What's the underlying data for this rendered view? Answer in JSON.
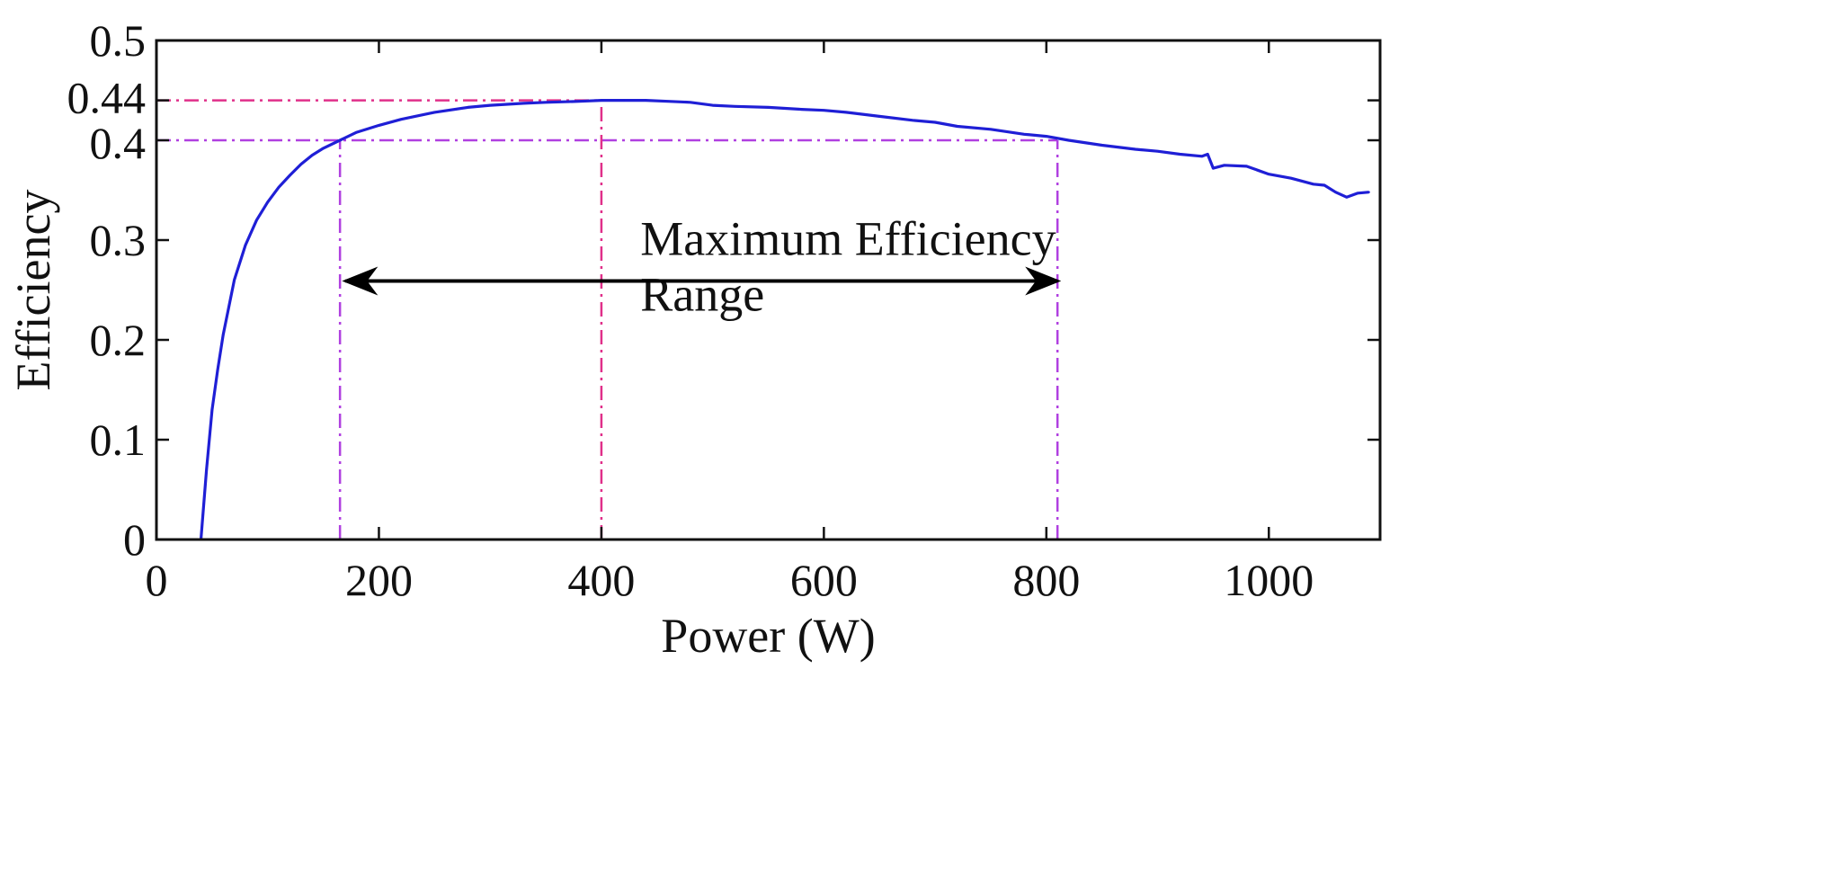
{
  "chart_data": {
    "type": "line",
    "title": "",
    "xlabel": "Power (W)",
    "ylabel": "Efficiency",
    "xlim": [
      0,
      1100
    ],
    "ylim": [
      0,
      0.5
    ],
    "x_ticks": [
      0,
      200,
      400,
      600,
      800,
      1000
    ],
    "x_tick_labels": [
      "0",
      "200",
      "400",
      "600",
      "800",
      "1000"
    ],
    "y_ticks": [
      0,
      0.1,
      0.2,
      0.3,
      0.4,
      0.44,
      0.5
    ],
    "y_tick_labels": [
      "0",
      "0.1",
      "0.2",
      "0.3",
      "0.4",
      "0.44",
      "0.5"
    ],
    "grid": false,
    "series": [
      {
        "name": "Efficiency",
        "color": "#1f1fd6",
        "x": [
          40,
          45,
          50,
          55,
          60,
          70,
          80,
          90,
          100,
          110,
          120,
          130,
          140,
          150,
          165,
          180,
          200,
          220,
          250,
          280,
          300,
          330,
          350,
          380,
          400,
          420,
          440,
          460,
          480,
          500,
          520,
          550,
          580,
          600,
          620,
          650,
          680,
          700,
          720,
          750,
          780,
          800,
          820,
          850,
          880,
          900,
          920,
          940,
          945,
          950,
          960,
          980,
          1000,
          1020,
          1040,
          1050,
          1060,
          1070,
          1080,
          1090
        ],
        "values": [
          0.0,
          0.07,
          0.13,
          0.17,
          0.205,
          0.26,
          0.295,
          0.32,
          0.338,
          0.353,
          0.365,
          0.376,
          0.385,
          0.392,
          0.4,
          0.408,
          0.415,
          0.421,
          0.428,
          0.433,
          0.435,
          0.437,
          0.438,
          0.439,
          0.44,
          0.44,
          0.44,
          0.439,
          0.438,
          0.435,
          0.434,
          0.433,
          0.431,
          0.43,
          0.428,
          0.424,
          0.42,
          0.418,
          0.414,
          0.411,
          0.406,
          0.404,
          0.4,
          0.395,
          0.391,
          0.389,
          0.386,
          0.384,
          0.386,
          0.372,
          0.375,
          0.374,
          0.366,
          0.362,
          0.356,
          0.355,
          0.348,
          0.343,
          0.347,
          0.348
        ]
      }
    ],
    "reference_lines": [
      {
        "orientation": "horizontal",
        "value": 0.44,
        "from": 0,
        "to": 400,
        "color": "#e0308a"
      },
      {
        "orientation": "horizontal",
        "value": 0.4,
        "from": 0,
        "to": 810,
        "color": "#b040e0"
      },
      {
        "orientation": "vertical",
        "value": 165,
        "from": 0,
        "to": 0.4,
        "color": "#b040e0"
      },
      {
        "orientation": "vertical",
        "value": 400,
        "from": 0,
        "to": 0.44,
        "color": "#e0308a"
      },
      {
        "orientation": "vertical",
        "value": 810,
        "from": 0,
        "to": 0.4,
        "color": "#b040e0"
      }
    ],
    "annotations": [
      {
        "text_lines": [
          "Maximum Efficiency",
          "Range"
        ],
        "x": 435,
        "y": 0.285,
        "arrow": {
          "x_start": 170,
          "x_end": 810,
          "y": 0.259,
          "color": "#000000"
        }
      }
    ],
    "colors": {
      "axis": "#111111",
      "line": "#1f1fd6"
    }
  }
}
